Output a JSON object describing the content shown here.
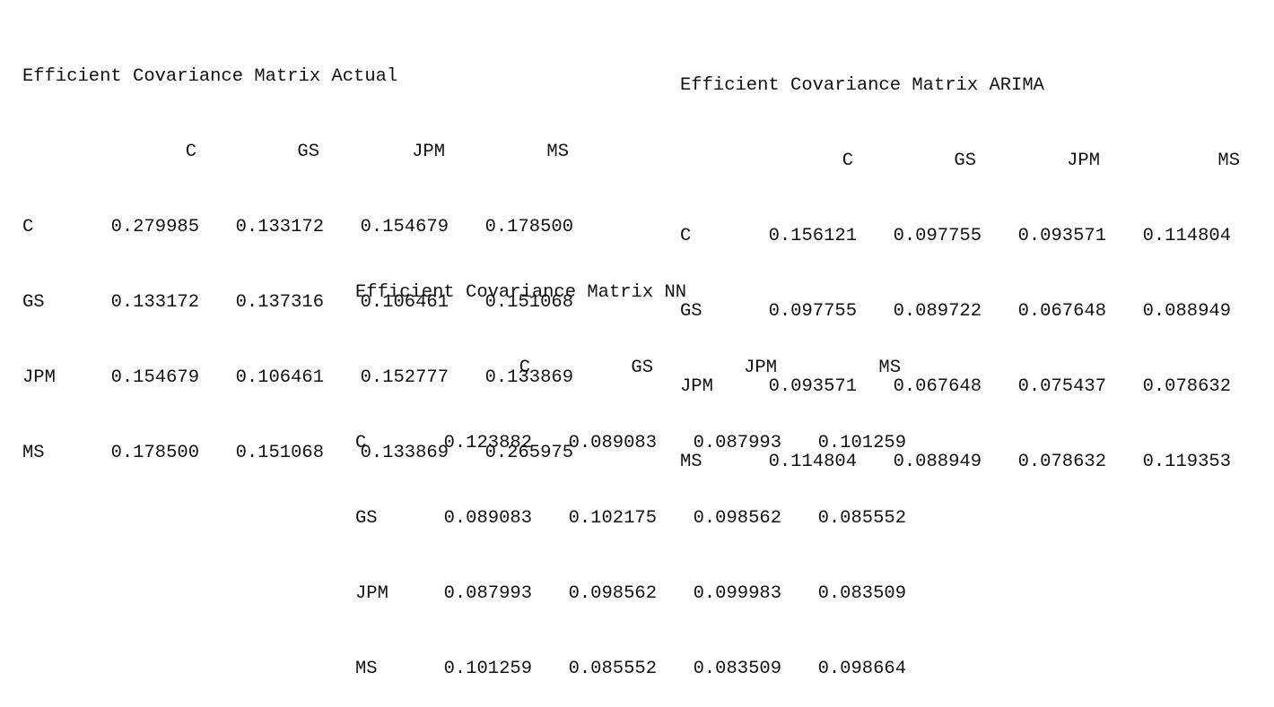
{
  "matrices": [
    {
      "title": "Efficient Covariance Matrix Actual",
      "columns": [
        "C",
        "GS",
        "JPM",
        "MS"
      ],
      "rows": [
        {
          "label": "C",
          "values": [
            "0.279985",
            "0.133172",
            "0.154679",
            "0.178500"
          ]
        },
        {
          "label": "GS",
          "values": [
            "0.133172",
            "0.137316",
            "0.106461",
            "0.151068"
          ]
        },
        {
          "label": "JPM",
          "values": [
            "0.154679",
            "0.106461",
            "0.152777",
            "0.133869"
          ]
        },
        {
          "label": "MS",
          "values": [
            "0.178500",
            "0.151068",
            "0.133869",
            "0.265975"
          ]
        }
      ]
    },
    {
      "title": "Efficient Covariance Matrix ARIMA",
      "columns": [
        "C",
        "GS",
        "JPM",
        "MS"
      ],
      "rows": [
        {
          "label": "C",
          "values": [
            "0.156121",
            "0.097755",
            "0.093571",
            "0.114804"
          ]
        },
        {
          "label": "GS",
          "values": [
            "0.097755",
            "0.089722",
            "0.067648",
            "0.088949"
          ]
        },
        {
          "label": "JPM",
          "values": [
            "0.093571",
            "0.067648",
            "0.075437",
            "0.078632"
          ]
        },
        {
          "label": "MS",
          "values": [
            "0.114804",
            "0.088949",
            "0.078632",
            "0.119353"
          ]
        }
      ]
    },
    {
      "title": "Efficient Covariance Matrix NN",
      "columns": [
        "C",
        "GS",
        "JPM",
        "MS"
      ],
      "rows": [
        {
          "label": "C",
          "values": [
            "0.123882",
            "0.089083",
            "0.087993",
            "0.101259"
          ]
        },
        {
          "label": "GS",
          "values": [
            "0.089083",
            "0.102175",
            "0.098562",
            "0.085552"
          ]
        },
        {
          "label": "JPM",
          "values": [
            "0.087993",
            "0.098562",
            "0.099983",
            "0.083509"
          ]
        },
        {
          "label": "MS",
          "values": [
            "0.101259",
            "0.085552",
            "0.083509",
            "0.098664"
          ]
        }
      ]
    }
  ]
}
